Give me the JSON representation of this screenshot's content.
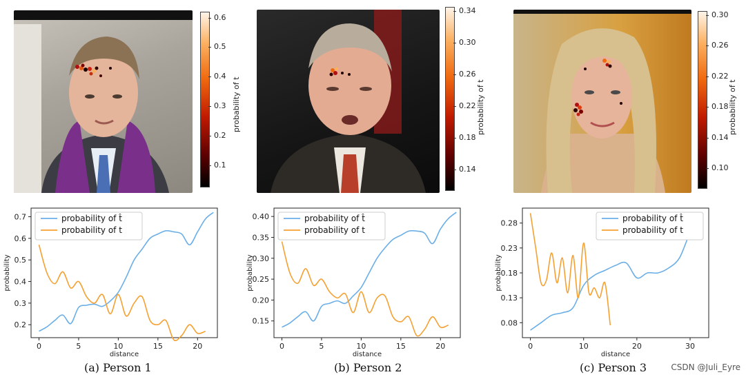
{
  "watermark": "CSDN @Juli_Eyre",
  "colors": {
    "t_hat": "#6aaee8",
    "t": "#f5a030"
  },
  "panels": [
    {
      "caption": "(a) Person 1",
      "colorbar": {
        "ticks": [
          "0.6",
          "0.5",
          "0.4",
          "0.3",
          "0.2",
          "0.1"
        ],
        "tick_values": [
          0.6,
          0.5,
          0.4,
          0.3,
          0.2,
          0.1
        ],
        "range": [
          0.03,
          0.62
        ],
        "label": "probability of t"
      },
      "photo_icon": "portrait-person-1"
    },
    {
      "caption": "(b) Person 2",
      "colorbar": {
        "ticks": [
          "0.34",
          "0.30",
          "0.26",
          "0.22",
          "0.18",
          "0.14"
        ],
        "tick_values": [
          0.34,
          0.3,
          0.26,
          0.22,
          0.18,
          0.14
        ],
        "range": [
          0.115,
          0.345
        ],
        "label": "probability of t"
      },
      "photo_icon": "portrait-person-2"
    },
    {
      "caption": "(c) Person 3",
      "colorbar": {
        "ticks": [
          "0.30",
          "0.26",
          "0.22",
          "0.18",
          "0.14",
          "0.10"
        ],
        "tick_values": [
          0.3,
          0.26,
          0.22,
          0.18,
          0.14,
          0.1
        ],
        "range": [
          0.075,
          0.305
        ],
        "label": "probability of t"
      },
      "photo_icon": "portrait-person-3"
    }
  ],
  "chart_data": [
    {
      "type": "line",
      "title": "",
      "xlabel": "distance",
      "ylabel": "probability",
      "xlim": [
        -1,
        22.5
      ],
      "ylim": [
        0.14,
        0.74
      ],
      "xticks": [
        0,
        5,
        10,
        15,
        20
      ],
      "yticks": [
        0.2,
        0.3,
        0.4,
        0.5,
        0.6,
        0.7
      ],
      "ytick_labels": [
        "0.2",
        "0.3",
        "0.4",
        "0.5",
        "0.6",
        "0.7"
      ],
      "legend": [
        "probability of t̂",
        "probability of t"
      ],
      "legend_position": "top-left",
      "series": [
        {
          "name": "probability of t̂",
          "x": [
            0,
            1,
            2,
            3,
            4,
            5,
            6,
            7,
            8,
            9,
            10,
            11,
            12,
            13,
            14,
            15,
            16,
            17,
            18,
            19,
            20,
            21,
            22
          ],
          "values": [
            0.17,
            0.19,
            0.22,
            0.245,
            0.205,
            0.28,
            0.29,
            0.295,
            0.285,
            0.31,
            0.35,
            0.42,
            0.5,
            0.55,
            0.6,
            0.62,
            0.635,
            0.63,
            0.62,
            0.57,
            0.63,
            0.69,
            0.72
          ]
        },
        {
          "name": "probability of t",
          "x": [
            0,
            1,
            2,
            3,
            4,
            5,
            6,
            7,
            8,
            9,
            10,
            11,
            12,
            13,
            14,
            15,
            16,
            17,
            18,
            19,
            20,
            21
          ],
          "values": [
            0.57,
            0.44,
            0.39,
            0.445,
            0.37,
            0.4,
            0.33,
            0.3,
            0.34,
            0.25,
            0.34,
            0.24,
            0.3,
            0.33,
            0.22,
            0.2,
            0.22,
            0.13,
            0.15,
            0.2,
            0.16,
            0.17
          ]
        }
      ]
    },
    {
      "type": "line",
      "title": "",
      "xlabel": "distance",
      "ylabel": "probability",
      "xlim": [
        -1,
        22.5
      ],
      "ylim": [
        0.11,
        0.42
      ],
      "xticks": [
        0,
        5,
        10,
        15,
        20
      ],
      "yticks": [
        0.15,
        0.2,
        0.25,
        0.3,
        0.35,
        0.4
      ],
      "ytick_labels": [
        "0.15",
        "0.20",
        "0.25",
        "0.30",
        "0.35",
        "0.40"
      ],
      "legend": [
        "probability of t̂",
        "probability of t"
      ],
      "legend_position": "top-left",
      "series": [
        {
          "name": "probability of t̂",
          "x": [
            0,
            1,
            2,
            3,
            4,
            5,
            6,
            7,
            8,
            9,
            10,
            11,
            12,
            13,
            14,
            15,
            16,
            17,
            18,
            19,
            20,
            21,
            22
          ],
          "values": [
            0.135,
            0.145,
            0.16,
            0.172,
            0.15,
            0.185,
            0.192,
            0.198,
            0.192,
            0.21,
            0.23,
            0.265,
            0.3,
            0.325,
            0.345,
            0.355,
            0.365,
            0.365,
            0.36,
            0.335,
            0.37,
            0.395,
            0.41
          ]
        },
        {
          "name": "probability of t",
          "x": [
            0,
            1,
            2,
            3,
            4,
            5,
            6,
            7,
            8,
            9,
            10,
            11,
            12,
            13,
            14,
            15,
            16,
            17,
            18,
            19,
            20,
            21
          ],
          "values": [
            0.34,
            0.265,
            0.24,
            0.275,
            0.235,
            0.25,
            0.22,
            0.205,
            0.215,
            0.17,
            0.22,
            0.17,
            0.205,
            0.21,
            0.16,
            0.148,
            0.16,
            0.115,
            0.13,
            0.16,
            0.135,
            0.14
          ]
        }
      ]
    },
    {
      "type": "line",
      "title": "",
      "xlabel": "distance",
      "ylabel": "probability",
      "xlim": [
        -1.5,
        33.5
      ],
      "ylim": [
        0.05,
        0.31
      ],
      "xticks": [
        0,
        10,
        20,
        30
      ],
      "yticks": [
        0.08,
        0.13,
        0.18,
        0.23,
        0.28
      ],
      "ytick_labels": [
        "0.08",
        "0.13",
        "0.18",
        "0.23",
        "0.28"
      ],
      "legend": [
        "probability of t̂",
        "probability of t"
      ],
      "legend_position": "top-right",
      "series": [
        {
          "name": "probability of t̂",
          "x": [
            0,
            2,
            4,
            6,
            8,
            10,
            12,
            14,
            16,
            18,
            20,
            22,
            24,
            26,
            28,
            30,
            32
          ],
          "values": [
            0.065,
            0.08,
            0.095,
            0.1,
            0.11,
            0.155,
            0.175,
            0.185,
            0.195,
            0.2,
            0.17,
            0.18,
            0.18,
            0.19,
            0.21,
            0.26,
            0.29
          ]
        },
        {
          "name": "probability of t",
          "x": [
            0,
            1,
            2,
            3,
            4,
            5,
            6,
            7,
            8,
            9,
            10,
            11,
            12,
            13,
            14,
            15
          ],
          "values": [
            0.3,
            0.23,
            0.16,
            0.165,
            0.22,
            0.16,
            0.21,
            0.14,
            0.215,
            0.13,
            0.24,
            0.14,
            0.15,
            0.13,
            0.16,
            0.075
          ]
        }
      ]
    }
  ]
}
